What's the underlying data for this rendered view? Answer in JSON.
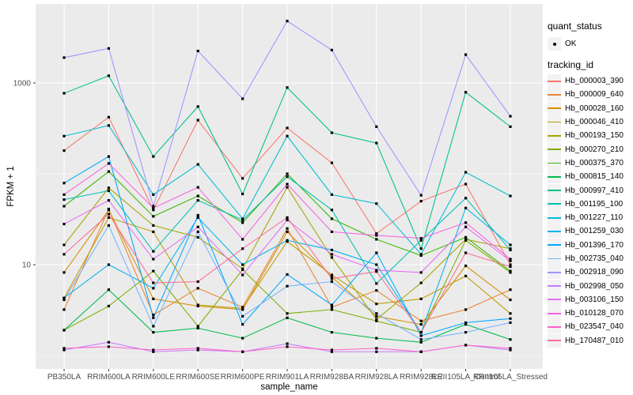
{
  "figure": {
    "background": "#FFFFFF",
    "panel_background": "#EBEBEB",
    "gridline_color": "#FFFFFF",
    "point_color": "#000000",
    "tick_label_color": "#4D4D4D",
    "axis_title_color": "#000000",
    "legend_key_background": "#F2F2F2"
  },
  "chart_data": {
    "type": "line",
    "title": "",
    "xlabel": "sample_name",
    "ylabel": "FPKM + 1",
    "y_scale": "log10",
    "y_tick_values": [
      10,
      1000
    ],
    "y_tick_labels": [
      "10",
      "1000"
    ],
    "y_minor_values": [
      1,
      100
    ],
    "grid": true,
    "legend_position": "right",
    "categories": [
      "PB350LA",
      "RRIM600LA",
      "RRIM600LE",
      "RRIM600SE",
      "RRIM600PE",
      "RRIM901LA",
      "RRIM928BA",
      "RRIM928LA",
      "RRIM928LE",
      "RRII105LA_Control",
      "RRII105LA_Stressed"
    ],
    "series": [
      {
        "name": "Hb_000003_390",
        "color": "#F8766D",
        "values": [
          180,
          420,
          40,
          390,
          89,
          320,
          132,
          22,
          50,
          77,
          10
        ]
      },
      {
        "name": "Hb_000009_640",
        "color": "#EA8331",
        "values": [
          3.2,
          41,
          2.8,
          5.5,
          3.4,
          25,
          3.4,
          5.2,
          2.4,
          3.2,
          5.3
        ]
      },
      {
        "name": "Hb_000028_160",
        "color": "#D89000",
        "values": [
          8.2,
          40,
          4.2,
          3.5,
          3.2,
          23,
          7.3,
          2.7,
          2.2,
          9.7,
          4.1
        ]
      },
      {
        "name": "Hb_000046_410",
        "color": "#C09B00",
        "values": [
          4.3,
          33,
          23,
          3.6,
          3.3,
          18,
          7.7,
          3.7,
          4.2,
          7.5,
          2.9
        ]
      },
      {
        "name": "Hb_000193_150",
        "color": "#A3A500",
        "values": [
          16.5,
          70,
          27,
          20,
          9,
          71,
          12,
          2.5,
          6.3,
          19,
          15
        ]
      },
      {
        "name": "Hb_000270_210",
        "color": "#7CAE00",
        "values": [
          1.9,
          3.5,
          8.5,
          2.1,
          8.8,
          2.9,
          3.2,
          2.4,
          1.8,
          18.5,
          8.2
        ]
      },
      {
        "name": "Hb_000375_370",
        "color": "#39B600",
        "values": [
          44,
          106,
          34,
          57,
          29,
          100,
          32,
          19,
          12.6,
          20,
          8.5
        ]
      },
      {
        "name": "Hb_000815_140",
        "color": "#00BB4E",
        "values": [
          1.9,
          5.3,
          1.8,
          2.0,
          1.55,
          2.6,
          1.8,
          1.55,
          1.4,
          2.2,
          1.5
        ]
      },
      {
        "name": "Hb_000997_410",
        "color": "#00C087",
        "values": [
          770,
          1200,
          155,
          550,
          60,
          890,
          283,
          218,
          15,
          790,
          330
        ]
      },
      {
        "name": "Hb_001195_100",
        "color": "#00C0B2",
        "values": [
          52,
          65,
          14,
          51,
          31,
          93,
          40,
          6.2,
          18.5,
          54,
          14.5
        ]
      },
      {
        "name": "Hb_001227_110",
        "color": "#00BDD2",
        "values": [
          260,
          340,
          59,
          127,
          32,
          260,
          59,
          47,
          13,
          104,
          57
        ]
      },
      {
        "name": "Hb_001259_030",
        "color": "#00B4EF",
        "values": [
          4.3,
          10,
          5.5,
          33,
          10,
          18.5,
          14.5,
          10,
          1.8,
          42,
          16.5
        ]
      },
      {
        "name": "Hb_001396_170",
        "color": "#00A7FF",
        "values": [
          79,
          155,
          2.6,
          35,
          2.2,
          7.8,
          3.6,
          13.5,
          1.65,
          2.3,
          2.55
        ]
      },
      {
        "name": "Hb_002735_040",
        "color": "#72B2FF",
        "values": [
          4.1,
          27,
          2.1,
          23,
          2.7,
          5.8,
          6.5,
          2.9,
          1.5,
          1.8,
          2.3
        ]
      },
      {
        "name": "Hb_002918_090",
        "color": "#9C96FF",
        "values": [
          1900,
          2400,
          44,
          2250,
          670,
          4800,
          2300,
          330,
          58,
          2050,
          430
        ]
      },
      {
        "name": "Hb_002998_050",
        "color": "#C77CFF",
        "values": [
          1.15,
          1.4,
          1.1,
          1.15,
          1.1,
          1.35,
          1.1,
          1.1,
          1.1,
          1.3,
          1.15
        ]
      },
      {
        "name": "Hb_003106_150",
        "color": "#E76BF3",
        "values": [
          28,
          51,
          11.5,
          26,
          7.7,
          31,
          13,
          8.7,
          8.2,
          26,
          11
        ]
      },
      {
        "name": "Hb_010128_070",
        "color": "#F763E0",
        "values": [
          59,
          130,
          42,
          71,
          19,
          77,
          23,
          21,
          19.5,
          29,
          11.5
        ]
      },
      {
        "name": "Hb_023547_040",
        "color": "#FF61C7",
        "values": [
          1.2,
          1.25,
          1.15,
          1.2,
          1.1,
          1.25,
          1.15,
          1.2,
          1.1,
          1.3,
          1.2
        ]
      },
      {
        "name": "Hb_170487_010",
        "color": "#FF6B96",
        "values": [
          13,
          36,
          6.3,
          6.5,
          15,
          33,
          7.0,
          8.4,
          1.8,
          13.5,
          9.5
        ]
      }
    ],
    "legend": {
      "quant_status_title": "quant_status",
      "quant_status_items": [
        "OK"
      ],
      "tracking_id_title": "tracking_id"
    }
  }
}
